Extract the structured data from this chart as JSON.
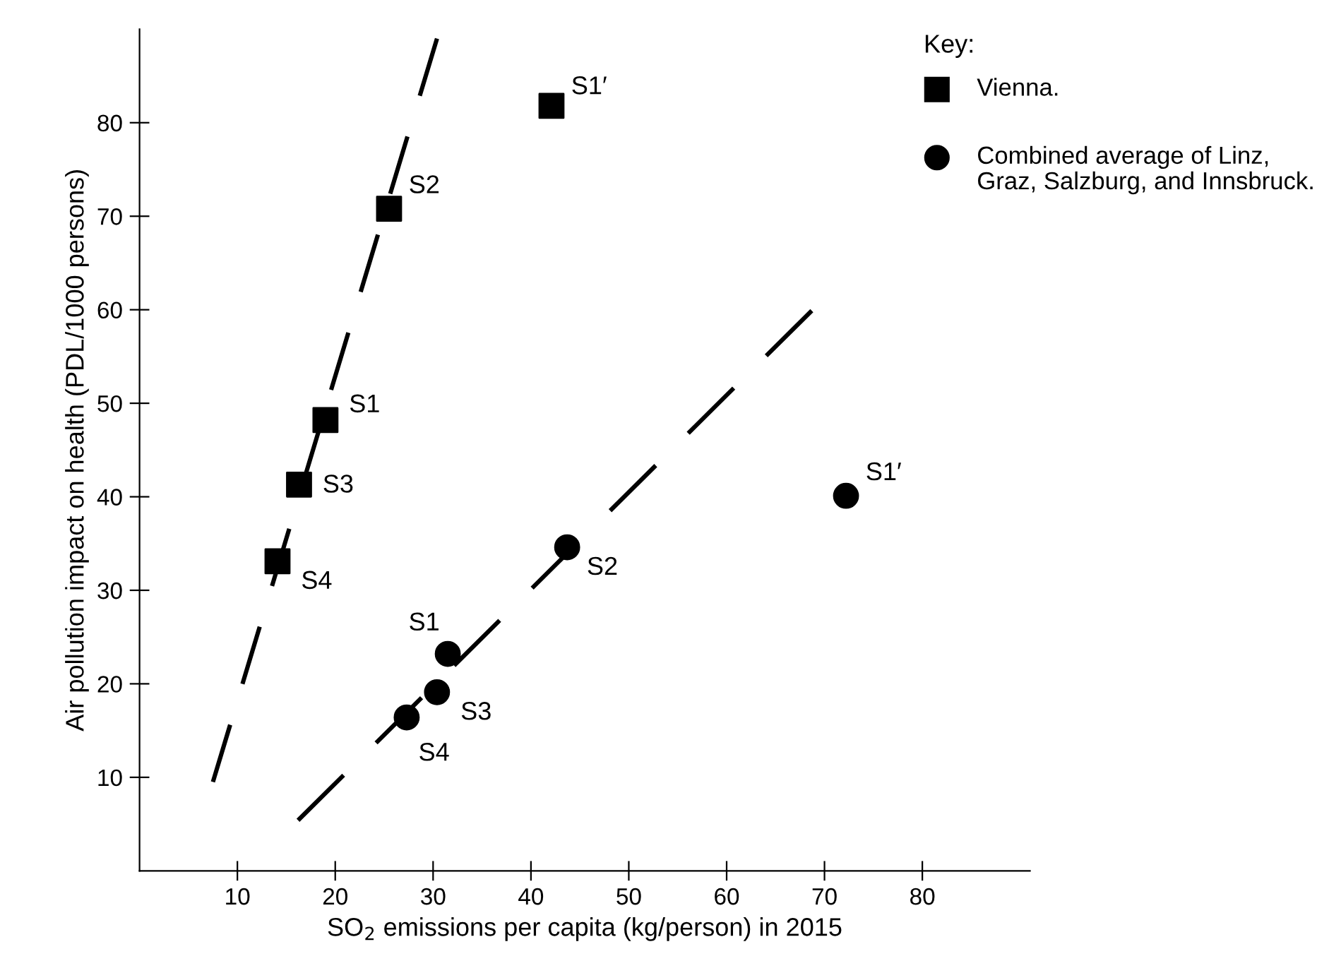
{
  "chart_data": {
    "type": "scatter",
    "xlabel": "SO$_{2}$ emissions per capita (kg/person) in 2015",
    "ylabel": "Air pollution impact on health (PDL/1000 persons)",
    "legend_title": "Key:",
    "legend": "top right",
    "grid": false,
    "xlim": [
      0,
      91
    ],
    "ylim": [
      0,
      90
    ],
    "xticks": [
      10,
      20,
      30,
      40,
      50,
      60,
      70,
      80
    ],
    "yticks": [
      10,
      20,
      30,
      40,
      50,
      60,
      70,
      80
    ],
    "series": [
      {
        "name": "Vienna.",
        "marker": "square",
        "color": "#000000",
        "x": [
          42.1,
          25.5,
          19.0,
          16.3,
          14.1
        ],
        "values": [
          81.8,
          70.8,
          48.2,
          41.3,
          33.1
        ]
      },
      {
        "name": "Combined average of Linz, Graz, Salzburg, and Innsbruck.",
        "marker": "circle",
        "color": "#000000",
        "x": [
          72.2,
          43.7,
          31.5,
          30.4,
          27.3
        ],
        "values": [
          40.1,
          34.6,
          23.2,
          19.1,
          16.4
        ]
      },
      {
        "type": "line",
        "line_style": "dashed",
        "marker": "none",
        "color": "#000000",
        "x": [
          7.5,
          30.4
        ],
        "values": [
          9.5,
          89
        ]
      },
      {
        "type": "line",
        "line_style": "dashed",
        "marker": "none",
        "color": "#000000",
        "x": [
          16.2,
          68.7
        ],
        "values": [
          5.4,
          59.9
        ]
      }
    ],
    "annotations": [
      {
        "text": "S1′",
        "x": 42.1,
        "y": 81.8
      },
      {
        "text": "S2",
        "x": 25.5,
        "y": 70.8
      },
      {
        "text": "S1",
        "x": 19.0,
        "y": 48.2
      },
      {
        "text": "S3",
        "x": 16.3,
        "y": 41.3
      },
      {
        "text": "S4",
        "x": 14.1,
        "y": 33.1
      },
      {
        "text": "S1′",
        "x": 72.2,
        "y": 40.1
      },
      {
        "text": "S2",
        "x": 43.7,
        "y": 34.6
      },
      {
        "text": "S1",
        "x": 31.5,
        "y": 23.2
      },
      {
        "text": "S3",
        "x": 30.4,
        "y": 19.1
      },
      {
        "text": "S4",
        "x": 27.3,
        "y": 16.4
      }
    ]
  }
}
